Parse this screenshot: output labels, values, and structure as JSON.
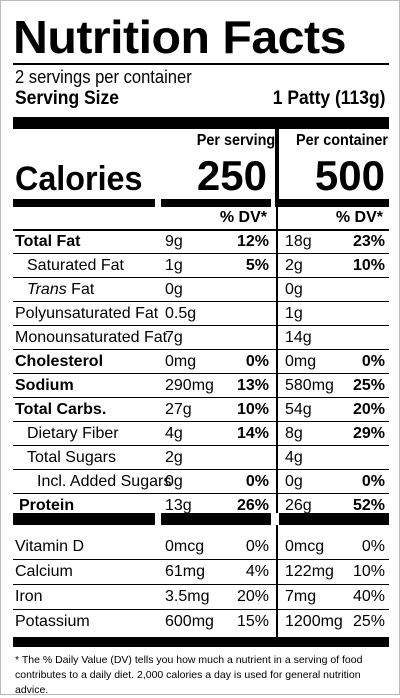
{
  "label": {
    "title": "Nutrition Facts",
    "servings_per_container": "2 servings per container",
    "serving_size_label": "Serving Size",
    "serving_size_value": "1 Patty (113g)",
    "per_serving_header": "Per serving",
    "per_container_header": "Per container",
    "calories_label": "Calories",
    "calories_per_serving": "250",
    "calories_per_container": "500",
    "dv_header": "% DV*"
  },
  "nutrients": [
    {
      "name": "Total Fat",
      "amount_serving": "9g",
      "dv_serving": "12%",
      "amount_container": "18g",
      "dv_container": "23%"
    },
    {
      "name": "Saturated Fat",
      "amount_serving": "1g",
      "dv_serving": "5%",
      "amount_container": "2g",
      "dv_container": "10%"
    },
    {
      "name_italic": "Trans",
      "name_rest": " Fat",
      "amount_serving": "0g",
      "dv_serving": "",
      "amount_container": "0g",
      "dv_container": ""
    },
    {
      "name": "Polyunsaturated Fat",
      "amount_serving": "0.5g",
      "dv_serving": "",
      "amount_container": "1g",
      "dv_container": ""
    },
    {
      "name": "Monounsaturated Fat",
      "amount_serving": "7g",
      "dv_serving": "",
      "amount_container": "14g",
      "dv_container": ""
    },
    {
      "name": "Cholesterol",
      "amount_serving": "0mg",
      "dv_serving": "0%",
      "amount_container": "0mg",
      "dv_container": "0%"
    },
    {
      "name": "Sodium",
      "amount_serving": "290mg",
      "dv_serving": "13%",
      "amount_container": "580mg",
      "dv_container": "25%"
    },
    {
      "name": "Total Carbs.",
      "amount_serving": "27g",
      "dv_serving": "10%",
      "amount_container": "54g",
      "dv_container": "20%"
    },
    {
      "name": "Dietary Fiber",
      "amount_serving": "4g",
      "dv_serving": "14%",
      "amount_container": "8g",
      "dv_container": "29%"
    },
    {
      "name": "Total Sugars",
      "amount_serving": "2g",
      "dv_serving": "",
      "amount_container": "4g",
      "dv_container": ""
    },
    {
      "name": "Incl. Added Sugars",
      "amount_serving": "0g",
      "dv_serving": "0%",
      "amount_container": "0g",
      "dv_container": "0%"
    },
    {
      "name": "Protein",
      "amount_serving": "13g",
      "dv_serving": "26%",
      "amount_container": "26g",
      "dv_container": "52%"
    }
  ],
  "vitamins": [
    {
      "name": "Vitamin D",
      "amount_serving": "0mcg",
      "dv_serving": "0%",
      "amount_container": "0mcg",
      "dv_container": "0%"
    },
    {
      "name": "Calcium",
      "amount_serving": "61mg",
      "dv_serving": "4%",
      "amount_container": "122mg",
      "dv_container": "10%"
    },
    {
      "name": "Iron",
      "amount_serving": "3.5mg",
      "dv_serving": "20%",
      "amount_container": "7mg",
      "dv_container": "40%"
    },
    {
      "name": "Potassium",
      "amount_serving": "600mg",
      "dv_serving": "15%",
      "amount_container": "1200mg",
      "dv_container": "25%"
    }
  ],
  "footnote": "* The % Daily Value (DV) tells you how much a nutrient in a serving of food contributes to a daily diet. 2,000 calories a day is used for general nutrition advice."
}
